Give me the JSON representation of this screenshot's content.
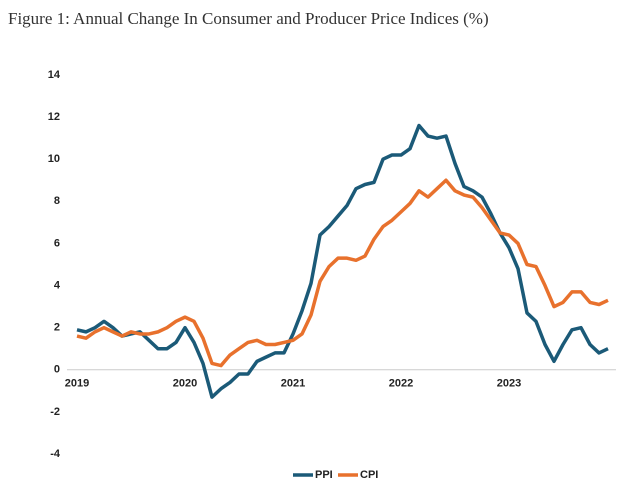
{
  "chart_data": {
    "type": "line",
    "title": "Figure 1: Annual Change In Consumer and Producer Price Indices (%)",
    "categories": [
      "2019",
      null,
      null,
      null,
      null,
      null,
      null,
      null,
      null,
      null,
      null,
      null,
      "2020",
      null,
      null,
      null,
      null,
      null,
      null,
      null,
      null,
      null,
      null,
      null,
      "2021",
      null,
      null,
      null,
      null,
      null,
      null,
      null,
      null,
      null,
      null,
      null,
      "2022",
      null,
      null,
      null,
      null,
      null,
      null,
      null,
      null,
      null,
      null,
      null,
      "2023",
      null,
      null,
      null,
      null,
      null,
      null,
      null,
      null,
      null,
      null,
      null
    ],
    "series": [
      {
        "name": "PPI",
        "color": "#1b5a78",
        "values": [
          1.9,
          1.8,
          2.0,
          2.3,
          2.0,
          1.6,
          1.7,
          1.8,
          1.4,
          1.0,
          1.0,
          1.3,
          2.0,
          1.3,
          0.3,
          -1.3,
          -0.9,
          -0.6,
          -0.2,
          -0.2,
          0.4,
          0.6,
          0.8,
          0.8,
          1.7,
          2.8,
          4.1,
          6.4,
          6.8,
          7.3,
          7.8,
          8.6,
          8.8,
          8.9,
          10.0,
          10.2,
          10.2,
          10.5,
          11.6,
          11.1,
          11.0,
          11.1,
          9.8,
          8.7,
          8.5,
          8.2,
          7.4,
          6.5,
          5.8,
          4.8,
          2.7,
          2.3,
          1.2,
          0.4,
          1.2,
          1.9,
          2.0,
          1.2,
          0.8,
          1.0
        ]
      },
      {
        "name": "CPI",
        "color": "#e8712d",
        "values": [
          1.6,
          1.5,
          1.8,
          2.0,
          1.8,
          1.6,
          1.8,
          1.7,
          1.7,
          1.8,
          2.0,
          2.3,
          2.5,
          2.3,
          1.5,
          0.3,
          0.2,
          0.7,
          1.0,
          1.3,
          1.4,
          1.2,
          1.2,
          1.3,
          1.4,
          1.7,
          2.6,
          4.2,
          4.9,
          5.3,
          5.3,
          5.2,
          5.4,
          6.2,
          6.8,
          7.1,
          7.5,
          7.9,
          8.5,
          8.2,
          8.6,
          9.0,
          8.5,
          8.3,
          8.2,
          7.7,
          7.1,
          6.5,
          6.4,
          6.0,
          5.0,
          4.9,
          4.0,
          3.0,
          3.2,
          3.7,
          3.7,
          3.2,
          3.1,
          3.3
        ]
      }
    ],
    "ylim": [
      -4,
      14
    ],
    "yticks": [
      -4,
      -2,
      0,
      2,
      4,
      6,
      8,
      10,
      12,
      14
    ],
    "grid": false,
    "legend": "bottom"
  }
}
